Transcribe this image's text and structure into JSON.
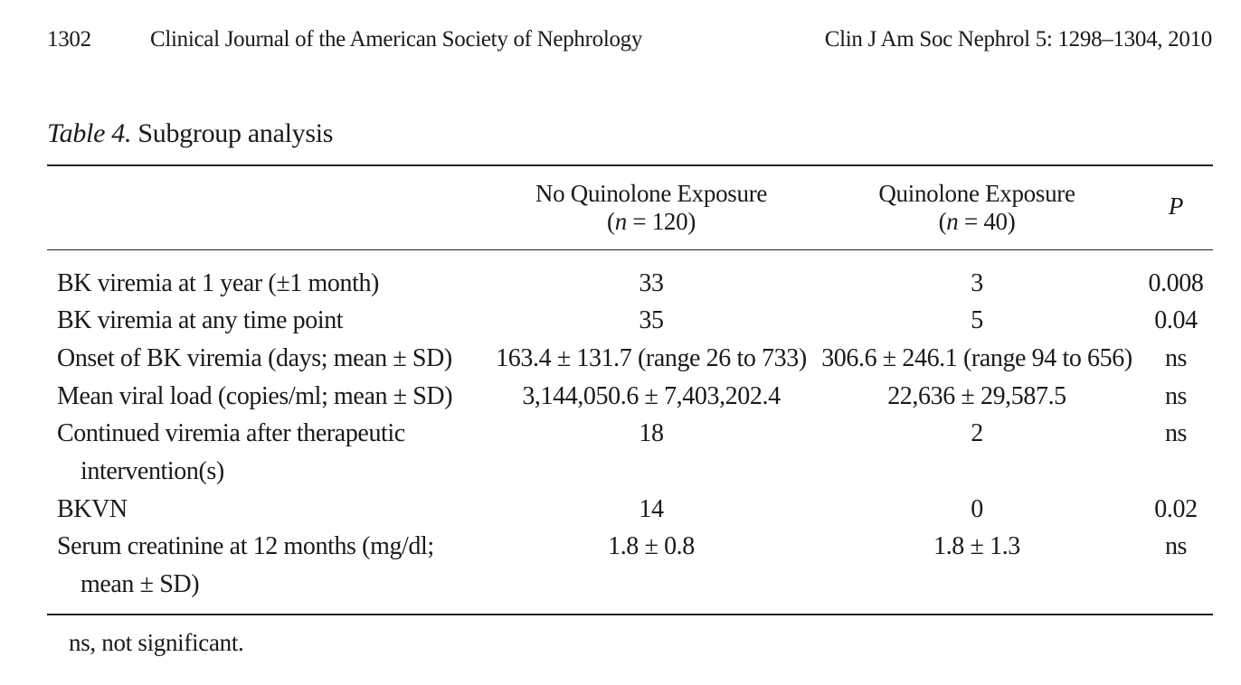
{
  "header": {
    "page_number": "1302",
    "journal": "Clinical Journal of the American Society of Nephrology",
    "citation": "Clin J Am Soc Nephrol 5: 1298–1304, 2010"
  },
  "table": {
    "label": "Table 4.",
    "title": "Subgroup analysis",
    "columns": {
      "group1": {
        "name": "No Quinolone Exposure",
        "n_label": "n",
        "n_value": "= 120)"
      },
      "group2": {
        "name": "Quinolone Exposure",
        "n_label": "n",
        "n_value": "= 40)"
      },
      "p": "P"
    },
    "rows": [
      {
        "label": "BK viremia at 1 year (±1 month)",
        "label_cont": "",
        "v1": "33",
        "v2": "3",
        "p": "0.008"
      },
      {
        "label": "BK viremia at any time point",
        "label_cont": "",
        "v1": "35",
        "v2": "5",
        "p": "0.04"
      },
      {
        "label": "Onset of BK viremia (days; mean ± SD)",
        "label_cont": "",
        "v1": "163.4 ± 131.7 (range 26 to 733)",
        "v2": "306.6 ± 246.1 (range 94 to 656)",
        "p": "ns"
      },
      {
        "label": "Mean viral load (copies/ml; mean ± SD)",
        "label_cont": "",
        "v1": "3,144,050.6 ± 7,403,202.4",
        "v2": "22,636 ± 29,587.5",
        "p": "ns"
      },
      {
        "label": "Continued viremia after therapeutic",
        "label_cont": "intervention(s)",
        "v1": "18",
        "v2": "2",
        "p": "ns"
      },
      {
        "label": "BKVN",
        "label_cont": "",
        "v1": "14",
        "v2": "0",
        "p": "0.02"
      },
      {
        "label": "Serum creatinine at 12 months (mg/dl;",
        "label_cont": "mean ± SD)",
        "v1": "1.8 ± 0.8",
        "v2": "1.8 ± 1.3",
        "p": "ns"
      }
    ],
    "footnote": "ns, not significant."
  }
}
